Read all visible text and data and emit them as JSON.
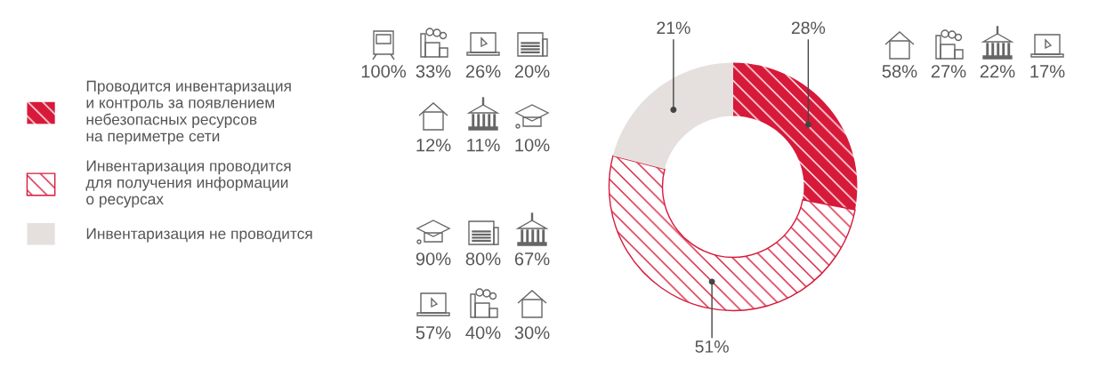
{
  "chart_data": {
    "type": "donut",
    "categories": [
      "Проводится инвентаризация\nи контроль за появлением\nнебезопасных ресурсов\nна периметре сети",
      "Инвентаризация проводится\nдля получения информации\nо ресурсах",
      "Инвентаризация не проводится"
    ],
    "values": [
      28,
      51,
      21
    ],
    "colors": [
      "#d7193a",
      "#d7193a",
      "#e5e0dd"
    ],
    "value_labels": [
      "28%",
      "51%",
      "21%"
    ],
    "legend": "left",
    "annotations": [
      "100%",
      "33%",
      "26%",
      "20%",
      "12%",
      "11%",
      "10%",
      "90%",
      "80%",
      "67%",
      "57%",
      "40%",
      "30%",
      "58%",
      "27%",
      "22%",
      "17%"
    ]
  }
}
